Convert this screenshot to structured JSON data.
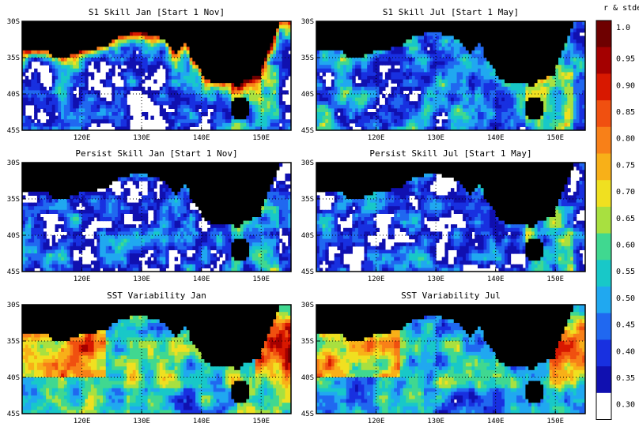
{
  "panels": [
    {
      "title": "S1 Skill Jan [Start 1 Nov]",
      "field": "skill",
      "seed": 11,
      "coastal": 0.55,
      "bias": -0.05
    },
    {
      "title": "S1 Skill Jul [Start 1 May]",
      "field": "skill",
      "seed": 23,
      "coastal": 0.1,
      "bias": 0.02
    },
    {
      "title": "Persist Skill Jan [Start 1 Nov]",
      "field": "skill",
      "seed": 37,
      "coastal": 0.0,
      "bias": -0.02
    },
    {
      "title": "Persist Skill Jul [Start 1 May]",
      "field": "skill",
      "seed": 41,
      "coastal": 0.05,
      "bias": -0.03
    },
    {
      "title": "SST Variability Jan",
      "field": "var",
      "seed": 53,
      "coastal": 0.0,
      "bias": 0.0
    },
    {
      "title": "SST Variability Jul",
      "field": "var",
      "seed": 67,
      "coastal": 0.0,
      "bias": -0.05
    }
  ],
  "chart_data": {
    "type": "heatmap",
    "lon_ticks": [
      "120E",
      "130E",
      "140E",
      "150E"
    ],
    "lat_ticks": [
      "30S",
      "35S",
      "40S",
      "45S"
    ],
    "lon_values": [
      120,
      130,
      140,
      150
    ],
    "lat_values": [
      -30,
      -35,
      -40,
      -45
    ],
    "lon_range": [
      110,
      155
    ],
    "lat_range": [
      -45,
      -30
    ],
    "grid": "dotted",
    "colorbar": {
      "title": "r & stdev",
      "labels": [
        "1.0",
        "0.95",
        "0.90",
        "0.85",
        "0.80",
        "0.75",
        "0.70",
        "0.65",
        "0.60",
        "0.55",
        "0.50",
        "0.45",
        "0.40",
        "0.35",
        "0.30"
      ],
      "colors": [
        "#6e0000",
        "#a40000",
        "#d81800",
        "#f05010",
        "#f88018",
        "#f8b018",
        "#f0e020",
        "#a8e040",
        "#40d890",
        "#18c8c8",
        "#20a8f0",
        "#2068f0",
        "#1830e0",
        "#1010b0",
        "#ffffff"
      ]
    },
    "land_color": "#000000",
    "missing_color": "#ffffff"
  }
}
